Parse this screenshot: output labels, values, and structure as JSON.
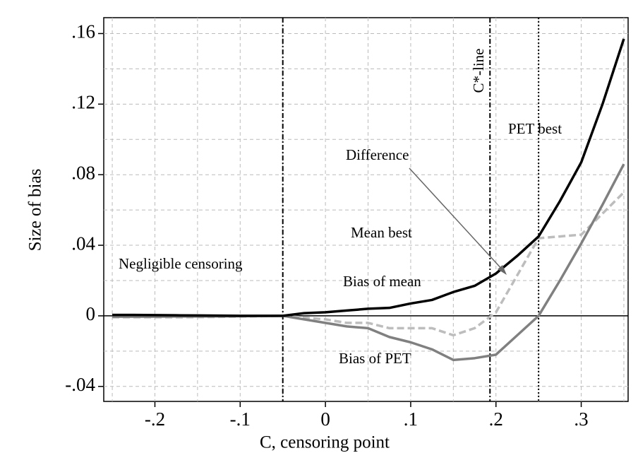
{
  "chart_data": {
    "type": "line",
    "x_label": "C, censoring point",
    "y_label": "Size of bias",
    "x": [
      -0.25,
      -0.225,
      -0.2,
      -0.175,
      -0.15,
      -0.125,
      -0.1,
      -0.075,
      -0.05,
      -0.025,
      0,
      0.025,
      0.05,
      0.075,
      0.1,
      0.125,
      0.15,
      0.175,
      0.2,
      0.225,
      0.25,
      0.275,
      0.3,
      0.325,
      0.35
    ],
    "series": [
      {
        "name": "Difference",
        "color": "#bdbdbd",
        "dash": true,
        "width": 3.5,
        "values": [
          -0.0008,
          -0.0008,
          -0.0008,
          -0.0008,
          -0.0007,
          -0.0006,
          -0.0004,
          -0.0002,
          0,
          -0.001,
          -0.002,
          -0.004,
          -0.004,
          -0.007,
          -0.007,
          -0.007,
          -0.011,
          -0.007,
          0.002,
          0.023,
          0.044,
          0.045,
          0.046,
          0.058,
          0.07
        ]
      },
      {
        "name": "Bias of PET",
        "color": "#808080",
        "dash": false,
        "width": 3.5,
        "values": [
          -0.0005,
          -0.0005,
          -0.0005,
          -0.0004,
          -0.0004,
          -0.0003,
          -0.0002,
          -0.0001,
          0,
          -0.002,
          -0.004,
          -0.006,
          -0.007,
          -0.012,
          -0.015,
          -0.019,
          -0.025,
          -0.024,
          -0.022,
          -0.011,
          0,
          0.02,
          0.041,
          0.063,
          0.086
        ]
      },
      {
        "name": "Bias of mean",
        "color": "#000000",
        "dash": false,
        "width": 3.5,
        "values": [
          0.0005,
          0.0005,
          0.0004,
          0.0003,
          0.0002,
          0.0001,
          0,
          0,
          0,
          0.0015,
          0.002,
          0.003,
          0.004,
          0.0045,
          0.007,
          0.009,
          0.0135,
          0.017,
          0.024,
          0.034,
          0.045,
          0.065,
          0.087,
          0.12,
          0.157
        ]
      }
    ],
    "xlim": [
      -0.26,
      0.355
    ],
    "ylim": [
      -0.0485,
      0.169
    ],
    "xticks": [
      {
        "value": -0.2,
        "label": "-.2"
      },
      {
        "value": -0.1,
        "label": "-.1"
      },
      0,
      {
        "value": 0.1,
        "label": ".1"
      },
      {
        "value": 0.2,
        "label": ".2"
      },
      {
        "value": 0.3,
        "label": ".3"
      }
    ],
    "yticks": [
      {
        "value": -0.04,
        "label": "-.04"
      },
      0,
      {
        "value": 0.04,
        "label": ".04"
      },
      {
        "value": 0.08,
        "label": ".08"
      },
      {
        "value": 0.12,
        "label": ".12"
      },
      {
        "value": 0.16,
        "label": ".16"
      }
    ],
    "xgrid": [
      -0.25,
      -0.2,
      -0.15,
      -0.1,
      -0.05,
      0,
      0.05,
      0.1,
      0.15,
      0.2,
      0.25,
      0.3,
      0.35
    ],
    "ygrid": [
      -0.04,
      -0.02,
      0,
      0.02,
      0.04,
      0.06,
      0.08,
      0.1,
      0.12,
      0.14,
      0.16
    ],
    "grid": true,
    "vlines": [
      {
        "value": -0.05,
        "style": "dashdot"
      },
      {
        "value": 0.193,
        "style": "dashdot",
        "label": "C*-line"
      },
      {
        "value": 0.25,
        "style": "dotted"
      }
    ],
    "annotations": [
      "Negligible censoring",
      "Mean best",
      "Bias of mean",
      "Bias of PET",
      "Difference",
      "PET best"
    ]
  }
}
